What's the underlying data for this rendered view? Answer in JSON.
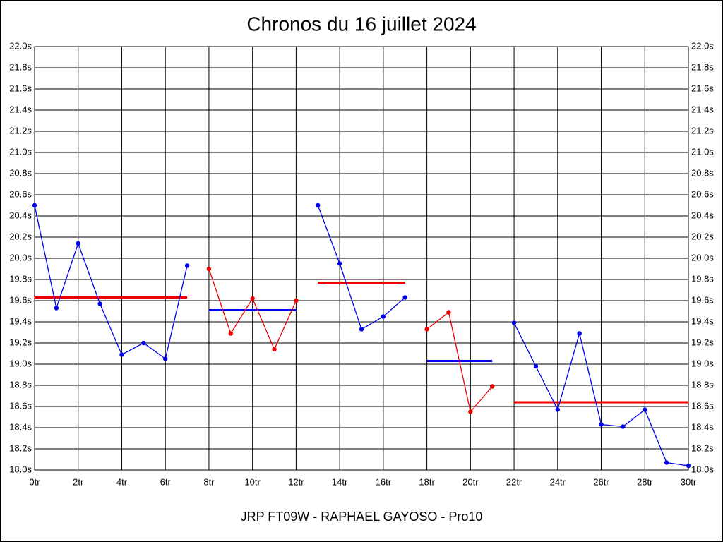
{
  "chart_data": {
    "type": "line",
    "title": "Chronos du 16 juillet 2024",
    "xlabel": "JRP FT09W - RAPHAEL GAYOSO - Pro10",
    "xlim": [
      0,
      30
    ],
    "ylim": [
      18.0,
      22.0
    ],
    "grid": true,
    "xticks": [
      {
        "value": 0,
        "label": "0tr"
      },
      {
        "value": 2,
        "label": "2tr"
      },
      {
        "value": 4,
        "label": "4tr"
      },
      {
        "value": 6,
        "label": "6tr"
      },
      {
        "value": 8,
        "label": "8tr"
      },
      {
        "value": 10,
        "label": "10tr"
      },
      {
        "value": 12,
        "label": "12tr"
      },
      {
        "value": 14,
        "label": "14tr"
      },
      {
        "value": 16,
        "label": "16tr"
      },
      {
        "value": 18,
        "label": "18tr"
      },
      {
        "value": 20,
        "label": "20tr"
      },
      {
        "value": 22,
        "label": "22tr"
      },
      {
        "value": 24,
        "label": "24tr"
      },
      {
        "value": 26,
        "label": "26tr"
      },
      {
        "value": 28,
        "label": "28tr"
      },
      {
        "value": 30,
        "label": "30tr"
      }
    ],
    "yticks": [
      {
        "value": 18.0,
        "label": "18.0s"
      },
      {
        "value": 18.2,
        "label": "18.2s"
      },
      {
        "value": 18.4,
        "label": "18.4s"
      },
      {
        "value": 18.6,
        "label": "18.6s"
      },
      {
        "value": 18.8,
        "label": "18.8s"
      },
      {
        "value": 19.0,
        "label": "19.0s"
      },
      {
        "value": 19.2,
        "label": "19.2s"
      },
      {
        "value": 19.4,
        "label": "19.4s"
      },
      {
        "value": 19.6,
        "label": "19.6s"
      },
      {
        "value": 19.8,
        "label": "19.8s"
      },
      {
        "value": 20.0,
        "label": "20.0s"
      },
      {
        "value": 20.2,
        "label": "20.2s"
      },
      {
        "value": 20.4,
        "label": "20.4s"
      },
      {
        "value": 20.6,
        "label": "20.6s"
      },
      {
        "value": 20.8,
        "label": "20.8s"
      },
      {
        "value": 21.0,
        "label": "21.0s"
      },
      {
        "value": 21.2,
        "label": "21.2s"
      },
      {
        "value": 21.4,
        "label": "21.4s"
      },
      {
        "value": 21.6,
        "label": "21.6s"
      },
      {
        "value": 21.8,
        "label": "21.8s"
      },
      {
        "value": 22.0,
        "label": "22.0s"
      }
    ],
    "series": [
      {
        "color": "#0000ee",
        "x": [
          0,
          1,
          2,
          3,
          4,
          5,
          6,
          7
        ],
        "values": [
          20.5,
          19.53,
          20.14,
          19.57,
          19.09,
          19.2,
          19.05,
          19.93
        ],
        "average": 19.63,
        "average_color": "#ee0000"
      },
      {
        "color": "#ee0000",
        "x": [
          8,
          9,
          10,
          11,
          12
        ],
        "values": [
          19.9,
          19.29,
          19.62,
          19.14,
          19.6
        ],
        "average": 19.51,
        "average_color": "#0000ee"
      },
      {
        "color": "#0000ee",
        "x": [
          13,
          14,
          15,
          16,
          17
        ],
        "values": [
          20.5,
          19.95,
          19.33,
          19.45,
          19.63
        ],
        "average": 19.77,
        "average_color": "#ee0000"
      },
      {
        "color": "#ee0000",
        "x": [
          18,
          19,
          20,
          21
        ],
        "values": [
          19.33,
          19.49,
          18.55,
          18.79
        ],
        "average": 19.03,
        "average_color": "#0000ee"
      },
      {
        "color": "#0000ee",
        "x": [
          22,
          23,
          24,
          25,
          26,
          27,
          28,
          29,
          30
        ],
        "values": [
          19.39,
          18.98,
          18.57,
          19.29,
          18.43,
          18.41,
          18.57,
          18.07,
          18.04
        ],
        "average": 18.64,
        "average_color": "#ee0000"
      }
    ]
  }
}
